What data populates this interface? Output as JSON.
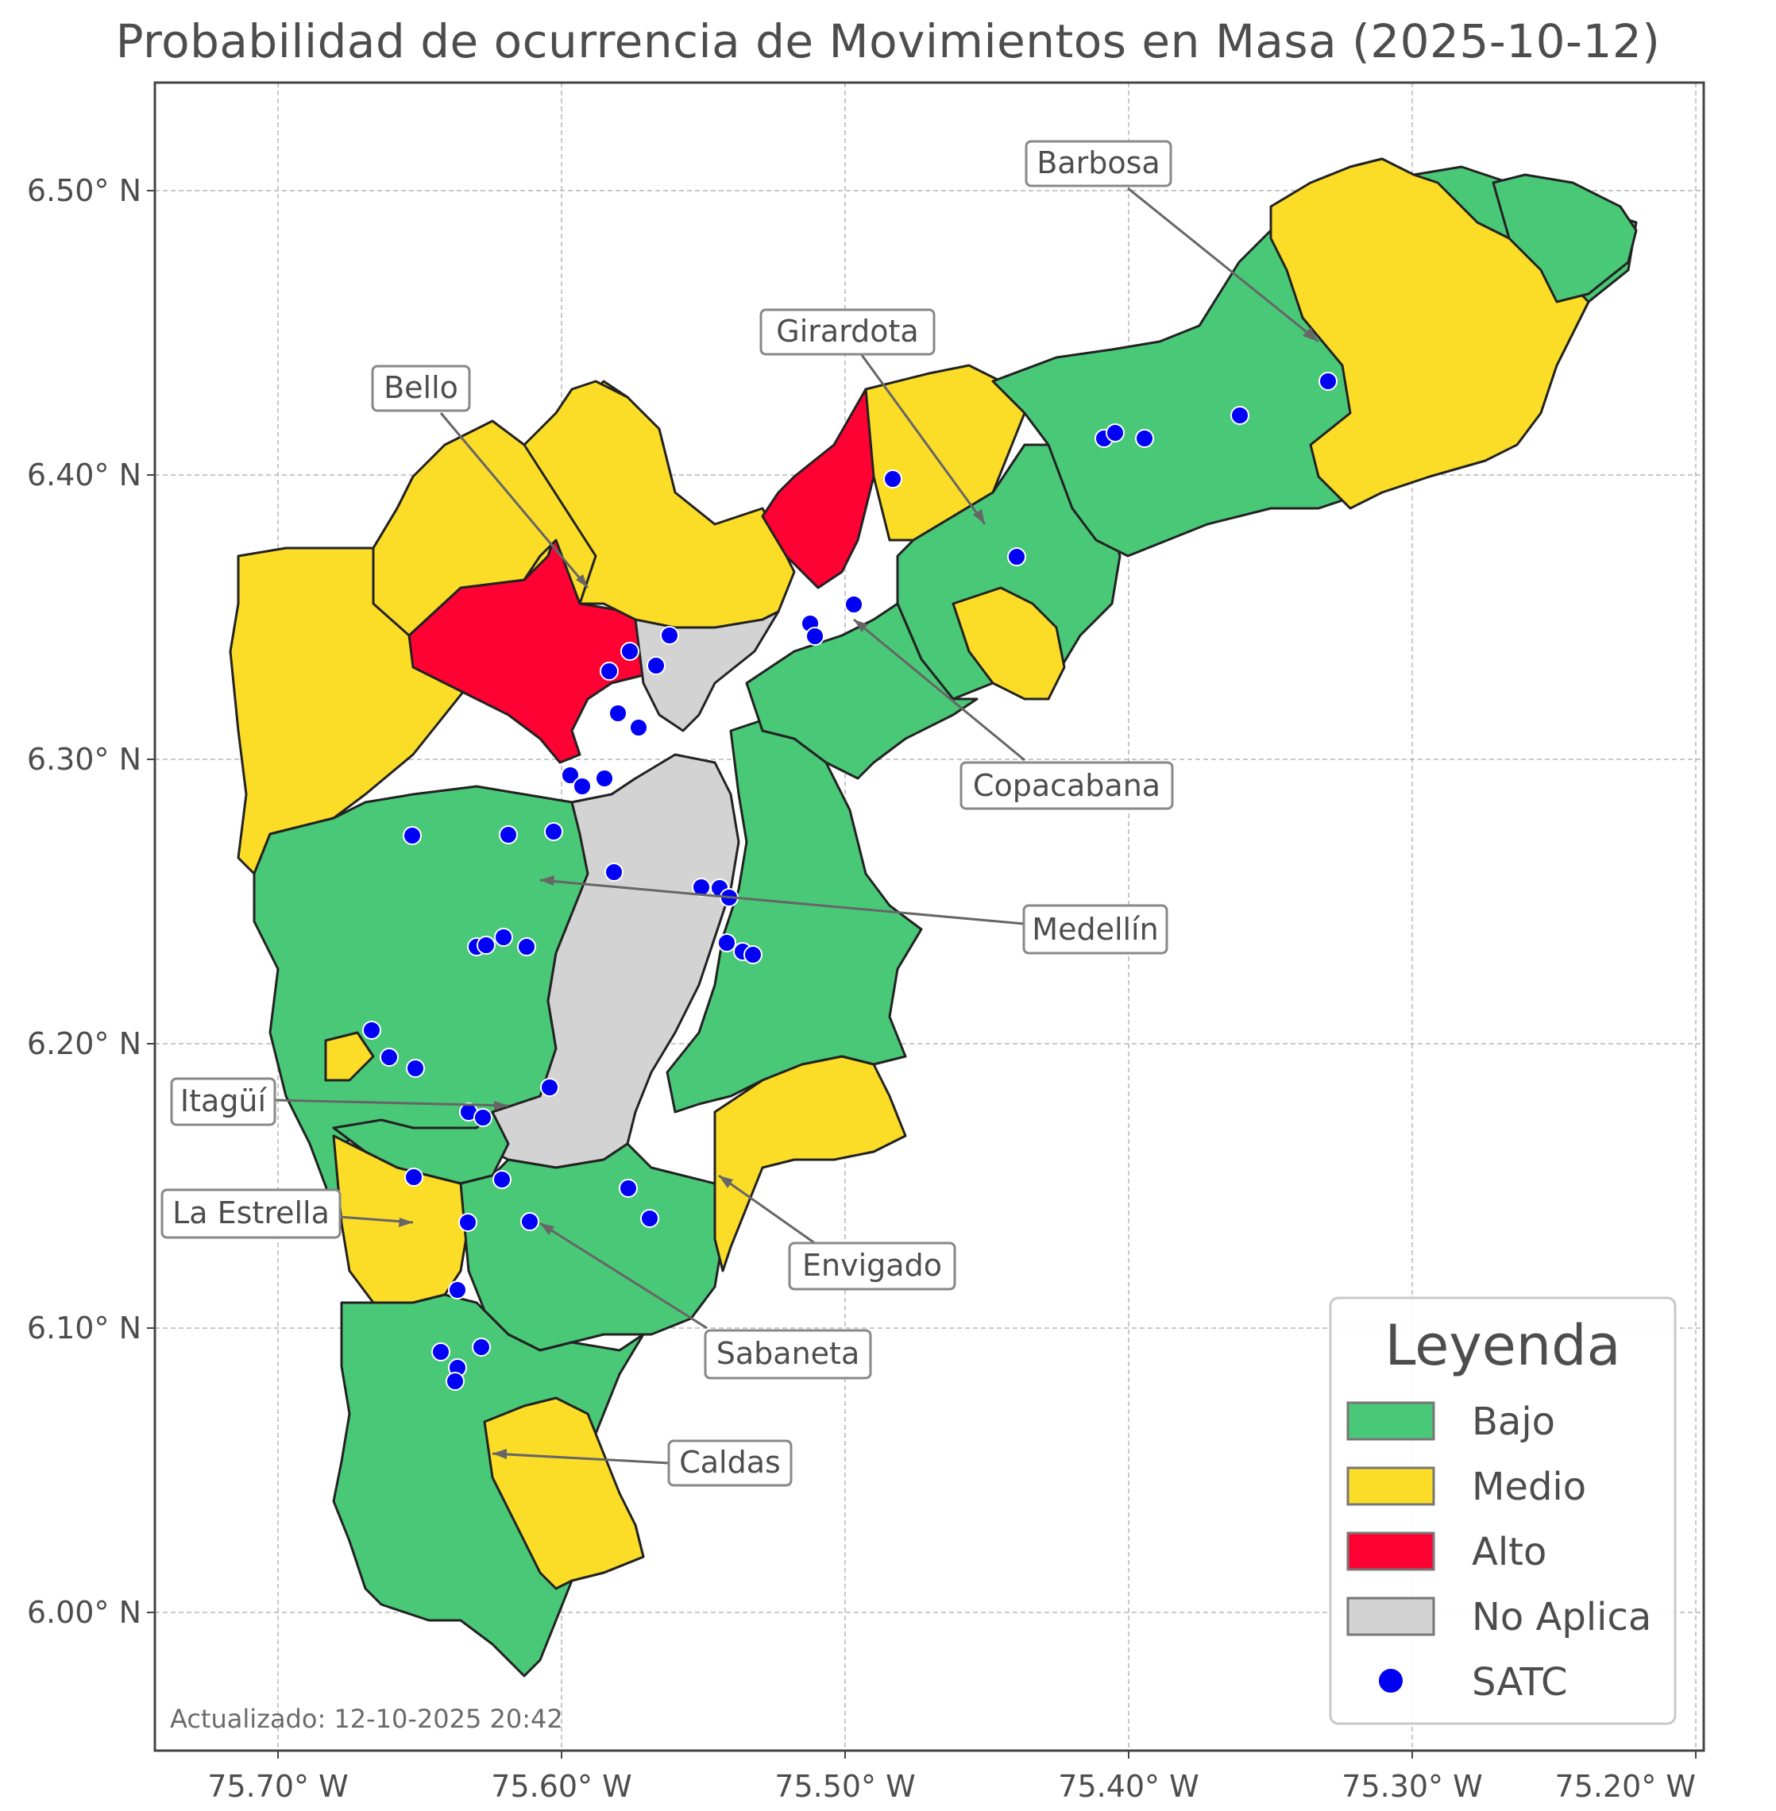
{
  "title": "Probabilidad de ocurrencia de Movimientos en Masa (2025-10-12)",
  "updated": "Actualizado: 12-10-2025 20:42",
  "axes": {
    "x_ticks": [
      "75.70° W",
      "75.60° W",
      "75.50° W",
      "75.40° W",
      "75.30° W",
      "75.20° W"
    ],
    "y_ticks": [
      "6.50° N",
      "6.40° N",
      "6.30° N",
      "6.20° N",
      "6.10° N",
      "6.00° N"
    ]
  },
  "colors": {
    "bajo": "#49c878",
    "medio": "#fbdd27",
    "alto": "#fd0232",
    "no_aplica": "#d3d3d3",
    "satc": "#0000f4"
  },
  "municipalities": [
    {
      "name": "Barbosa",
      "label": "Barbosa"
    },
    {
      "name": "Girardota",
      "label": "Girardota"
    },
    {
      "name": "Bello",
      "label": "Bello"
    },
    {
      "name": "Copacabana",
      "label": "Copacabana"
    },
    {
      "name": "Medellín",
      "label": "Medellín"
    },
    {
      "name": "Itagüí",
      "label": "Itagüí"
    },
    {
      "name": "La Estrella",
      "label": "La Estrella"
    },
    {
      "name": "Envigado",
      "label": "Envigado"
    },
    {
      "name": "Sabaneta",
      "label": "Sabaneta"
    },
    {
      "name": "Caldas",
      "label": "Caldas"
    }
  ],
  "legend": {
    "title": "Leyenda",
    "items": [
      {
        "label": "Bajo",
        "color": "#49c878",
        "kind": "patch"
      },
      {
        "label": "Medio",
        "color": "#fbdd27",
        "kind": "patch"
      },
      {
        "label": "Alto",
        "color": "#fd0232",
        "kind": "patch"
      },
      {
        "label": "No Aplica",
        "color": "#d3d3d3",
        "kind": "patch"
      },
      {
        "label": "SATC",
        "color": "#0000f4",
        "kind": "marker"
      }
    ]
  }
}
